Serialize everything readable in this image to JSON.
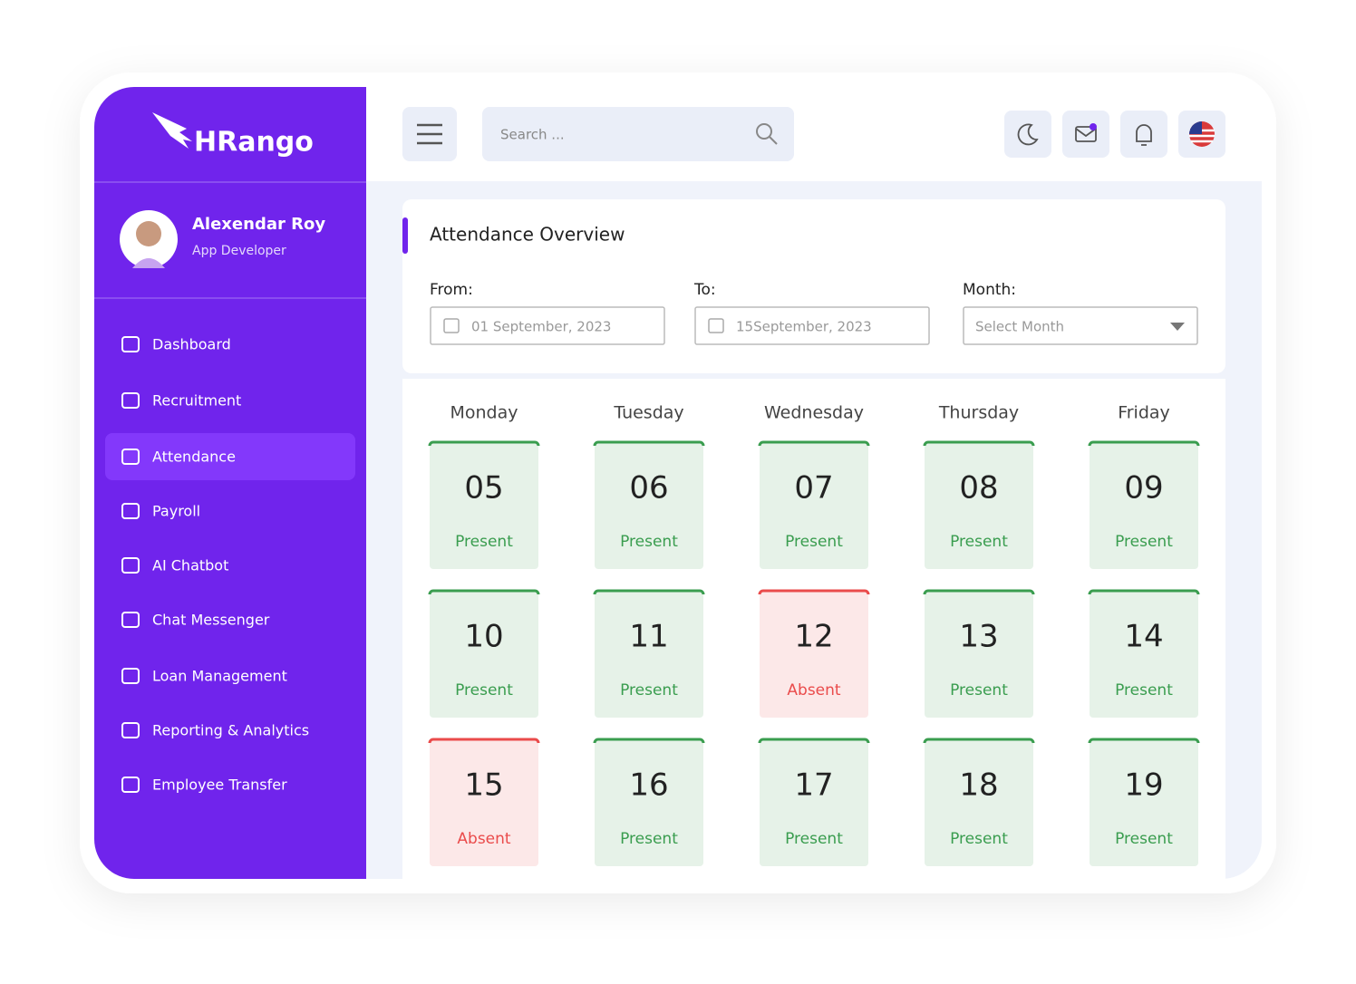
{
  "brand": "HRango",
  "user": {
    "name": "Alexendar  Roy",
    "role": "App Developer"
  },
  "nav": {
    "items": [
      "Dashboard",
      "Recruitment",
      "Attendance",
      "Payroll",
      "AI Chatbot",
      "Chat Messenger",
      "Loan Management",
      "Reporting & Analytics",
      "Employee Transfer"
    ],
    "active": 2
  },
  "search_placeholder": "Search ...",
  "panel": {
    "title": "Attendance Overview",
    "from_label": "From:",
    "from_value": "01 September, 2023",
    "to_label": "To:",
    "to_value": "15September, 2023",
    "month_label": "Month:",
    "month_placeholder": "Select Month"
  },
  "calendar": {
    "weekdays": [
      "Monday",
      "Tuesday",
      "Wednesday",
      "Thursday",
      "Friday"
    ],
    "days": [
      {
        "date": "05",
        "status": "Present",
        "color": "#3a9d4f"
      },
      {
        "date": "06",
        "status": "Present",
        "color": "#3a9d4f"
      },
      {
        "date": "07",
        "status": "Present",
        "color": "#3a9d4f"
      },
      {
        "date": "08",
        "status": "Present",
        "color": "#3a9d4f"
      },
      {
        "date": "09",
        "status": "Present",
        "color": "#3a9d4f"
      },
      {
        "date": "10",
        "status": "Present",
        "color": "#3a9d4f"
      },
      {
        "date": "11",
        "status": "Present",
        "color": "#3a9d4f"
      },
      {
        "date": "12",
        "status": "Absent",
        "color": "#ea4b4b"
      },
      {
        "date": "13",
        "status": "Present",
        "color": "#3a9d4f"
      },
      {
        "date": "14",
        "status": "Present",
        "color": "#3a9d4f"
      },
      {
        "date": "15",
        "status": "Absent",
        "color": "#ea4b4b"
      },
      {
        "date": "16",
        "status": "Present",
        "color": "#3a9d4f"
      },
      {
        "date": "17",
        "status": "Present",
        "color": "#3a9d4f"
      },
      {
        "date": "18",
        "status": "Present",
        "color": "#3a9d4f"
      },
      {
        "date": "19",
        "status": "Present",
        "color": "#3a9d4f"
      }
    ]
  }
}
